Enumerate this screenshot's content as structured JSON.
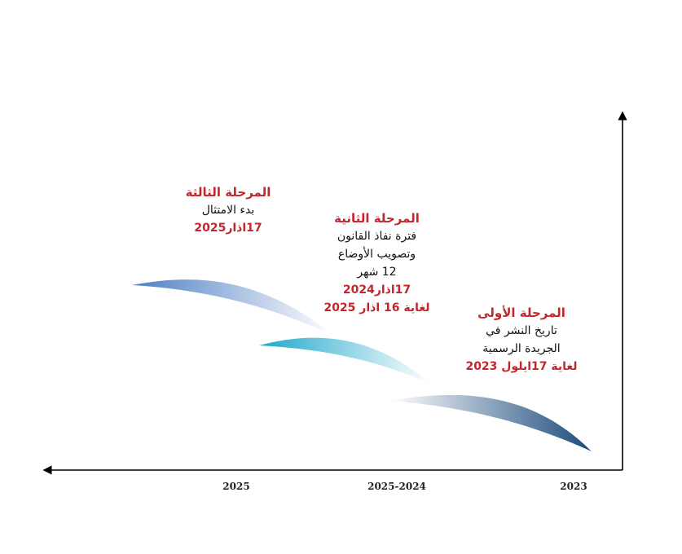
{
  "colors": {
    "accent_red": "#c1272d",
    "text_dark": "#111111",
    "phase1_band": "#1f4a7a",
    "phase2_band": "#27a6c9",
    "phase3_band": "#4f7fc4"
  },
  "axis": {
    "years": [
      "2023",
      "2025-2024",
      "2025"
    ]
  },
  "phases": {
    "phase3": {
      "title": "المرحلة الثالثة",
      "line1": "بدء الامتثال",
      "line2": "17اذار2025"
    },
    "phase2": {
      "title": "المرحلة الثانية",
      "line1": "فترة نفاذ القانون",
      "line2": "وتصويب الأوضاع",
      "line3": "12 شهر",
      "line4": "17اذار2024",
      "line5": "لغاية 16 اذار 2025"
    },
    "phase1": {
      "title": "المرحلة الأولى",
      "line1": "تاريخ النشر في",
      "line2": "الجريدة الرسمية",
      "line3": "لغاية  17ايلول 2023"
    }
  }
}
